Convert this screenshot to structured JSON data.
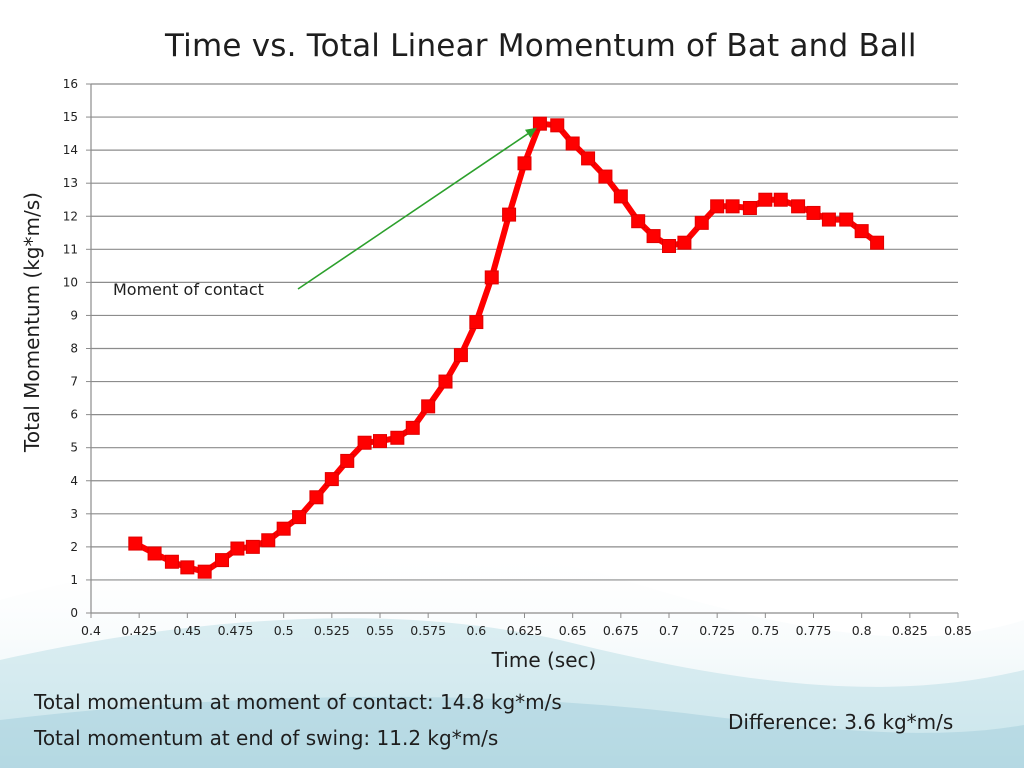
{
  "chart_data": {
    "type": "line",
    "title": "Time vs. Total Linear Momentum of  Bat and Ball",
    "xlabel": "Time (sec)",
    "ylabel": "Total Momentum (kg*m/s)",
    "xlim": [
      0.4,
      0.85
    ],
    "ylim": [
      0,
      16
    ],
    "x_ticks": [
      "0.4",
      "0.425",
      "0.45",
      "0.475",
      "0.5",
      "0.525",
      "0.55",
      "0.575",
      "0.6",
      "0.625",
      "0.65",
      "0.675",
      "0.7",
      "0.725",
      "0.75",
      "0.775",
      "0.8",
      "0.825",
      "0.85"
    ],
    "y_ticks": [
      "0",
      "1",
      "2",
      "3",
      "4",
      "5",
      "6",
      "7",
      "8",
      "9",
      "10",
      "11",
      "12",
      "13",
      "14",
      "15",
      "16"
    ],
    "grid": "horizontal",
    "series": [
      {
        "color": "#ff0000",
        "x": [
          0.423,
          0.433,
          0.442,
          0.45,
          0.459,
          0.468,
          0.476,
          0.484,
          0.492,
          0.5,
          0.508,
          0.517,
          0.525,
          0.533,
          0.542,
          0.55,
          0.559,
          0.567,
          0.575,
          0.584,
          0.592,
          0.6,
          0.608,
          0.617,
          0.625,
          0.633,
          0.642,
          0.65,
          0.658,
          0.667,
          0.675,
          0.684,
          0.692,
          0.7,
          0.708,
          0.717,
          0.725,
          0.733,
          0.742,
          0.75,
          0.758,
          0.767,
          0.775,
          0.783,
          0.792,
          0.8,
          0.808
        ],
        "y": [
          2.1,
          1.8,
          1.55,
          1.38,
          1.25,
          1.6,
          1.95,
          2.0,
          2.2,
          2.55,
          2.9,
          3.5,
          4.05,
          4.6,
          5.15,
          5.2,
          5.3,
          5.6,
          6.25,
          7.0,
          7.8,
          8.8,
          10.15,
          12.05,
          13.6,
          14.8,
          14.75,
          14.2,
          13.75,
          13.2,
          12.6,
          11.85,
          11.4,
          11.1,
          11.2,
          11.8,
          12.3,
          12.3,
          12.25,
          12.5,
          12.5,
          12.3,
          12.1,
          11.9,
          11.9,
          11.55,
          11.2
        ]
      }
    ],
    "annotation": {
      "text": "Moment of  contact",
      "target_x": 0.633,
      "target_y": 14.8,
      "arrow_color": "#2ca02c"
    }
  },
  "footnotes": {
    "contact": "Total momentum at moment of  contact: 14.8 kg*m/s",
    "end": "Total momentum at end of  swing: 11.2 kg*m/s",
    "difference": "Difference: 3.6 kg*m/s"
  },
  "colors": {
    "line": "#ff0000",
    "marker": "#ff0000",
    "arrow": "#2ca02c",
    "background_wave": "#a9d3df"
  }
}
